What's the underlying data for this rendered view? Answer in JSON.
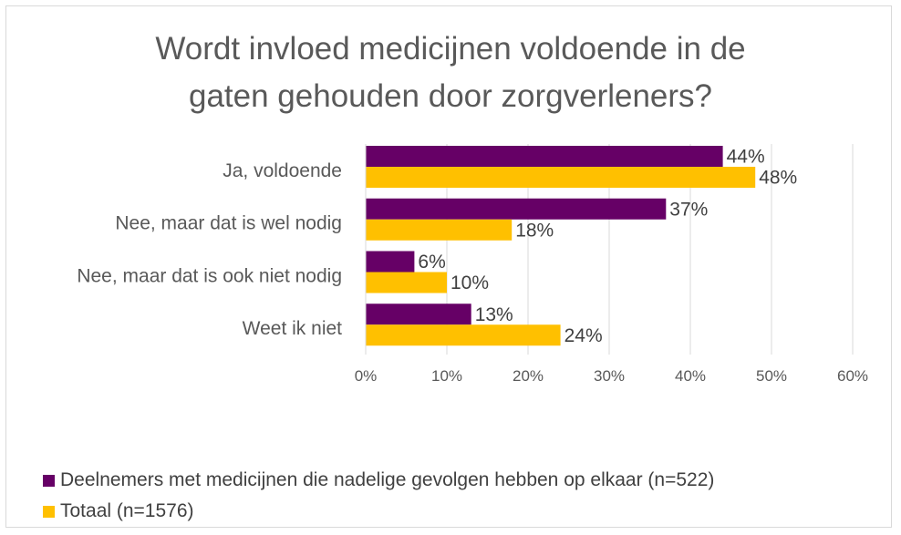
{
  "chart_data": {
    "type": "bar",
    "orientation": "horizontal",
    "title_lines": [
      "Wordt invloed medicijnen voldoende in de",
      "gaten gehouden door zorgverleners?"
    ],
    "categories": [
      "Ja, voldoende",
      "Nee, maar dat is wel nodig",
      "Nee, maar dat is ook niet nodig",
      "Weet ik niet"
    ],
    "series": [
      {
        "name": "Deelnemers met medicijnen die nadelige gevolgen hebben op elkaar (n=522)",
        "color": "#660066",
        "values": [
          44,
          37,
          6,
          13
        ],
        "labels": [
          "44%",
          "37%",
          "6%",
          "13%"
        ]
      },
      {
        "name": "Totaal (n=1576)",
        "color": "#ffc000",
        "values": [
          48,
          18,
          10,
          24
        ],
        "labels": [
          "48%",
          "18%",
          "10%",
          "24%"
        ]
      }
    ],
    "xlim": [
      0,
      60
    ],
    "xticks": [
      0,
      10,
      20,
      30,
      40,
      50,
      60
    ],
    "xtick_labels": [
      "0%",
      "10%",
      "20%",
      "30%",
      "40%",
      "50%",
      "60%"
    ],
    "grid": true,
    "legend_position": "bottom-left"
  }
}
